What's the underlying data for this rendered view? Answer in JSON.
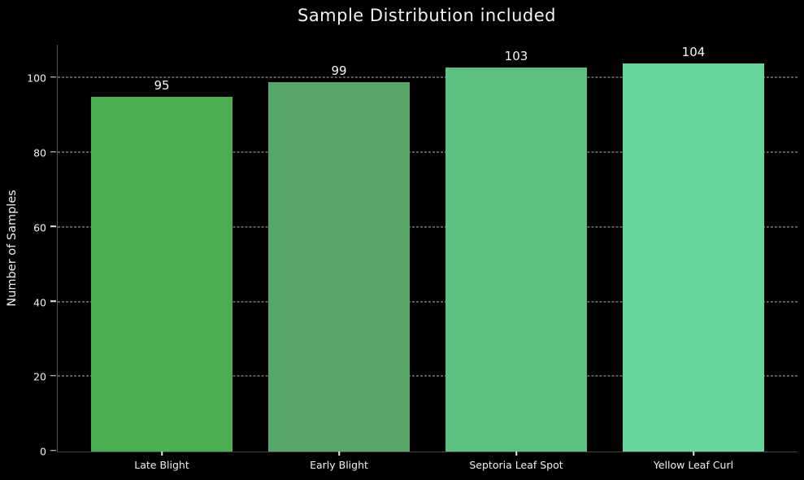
{
  "chart_data": {
    "type": "bar",
    "title": "Sample Distribution included",
    "xlabel": "",
    "ylabel": "Number of Samples",
    "categories": [
      "Late Blight",
      "Early Blight",
      "Septoria Leaf Spot",
      "Yellow Leaf Curl"
    ],
    "values": [
      95,
      99,
      103,
      104
    ],
    "bar_colors": [
      "#4bae52",
      "#55a667",
      "#5cc083",
      "#68d59d"
    ],
    "yticks": [
      0,
      20,
      40,
      60,
      80,
      100
    ],
    "ylim": [
      0,
      109
    ],
    "grid": "horizontal-dashed",
    "legend_position": "none",
    "background_color": "#000000",
    "text_color": "#f2f2f2",
    "gridline_color": "#b3b3b3",
    "axis_color": "#55595e"
  }
}
